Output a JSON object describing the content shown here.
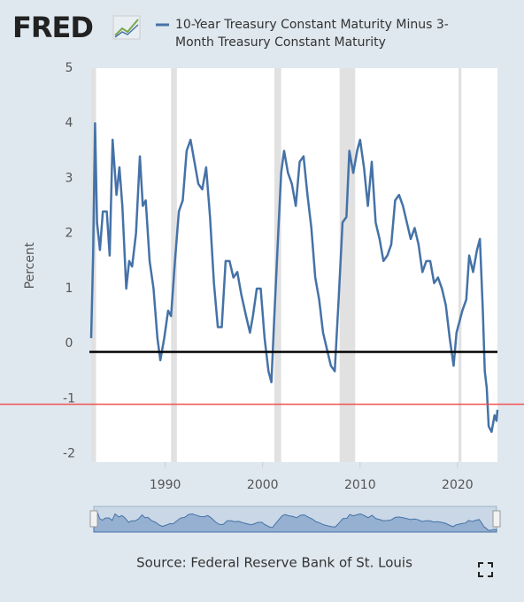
{
  "logo": "FRED",
  "source": "Source: Federal Reserve Bank of St. Louis",
  "chart_data": {
    "type": "line",
    "ylabel": "Percent",
    "xlim": [
      1982.4,
      2024.1
    ],
    "xticks": [
      1990,
      2000,
      2010,
      2020
    ],
    "ylim": [
      -2.15,
      5
    ],
    "yticks": [
      -2,
      -1,
      0,
      1,
      2,
      3,
      4,
      5
    ],
    "recessions": [
      [
        1981.5,
        1982.9
      ],
      [
        1990.6,
        1991.2
      ],
      [
        2001.2,
        2001.9
      ],
      [
        2007.9,
        2009.5
      ],
      [
        2020.1,
        2020.4
      ]
    ],
    "reference_lines": [
      {
        "value": -0.15,
        "color": "#000000"
      },
      {
        "value": -1.1,
        "color": "#f05050"
      }
    ],
    "series": [
      {
        "name": "10-Year Treasury Constant Maturity Minus 3-Month Treasury Constant Maturity",
        "color": "#4572a7",
        "x": [
          1982.4,
          1982.6,
          1982.8,
          1983.0,
          1983.3,
          1983.6,
          1984.0,
          1984.3,
          1984.6,
          1985.0,
          1985.3,
          1985.6,
          1986.0,
          1986.3,
          1986.6,
          1987.0,
          1987.4,
          1987.7,
          1988.0,
          1988.4,
          1988.8,
          1989.2,
          1989.5,
          1989.9,
          1990.3,
          1990.6,
          1991.0,
          1991.4,
          1991.8,
          1992.2,
          1992.6,
          1993.0,
          1993.4,
          1993.8,
          1994.2,
          1994.6,
          1995.0,
          1995.4,
          1995.8,
          1996.2,
          1996.6,
          1997.0,
          1997.4,
          1997.8,
          1998.3,
          1998.7,
          1999.0,
          1999.4,
          1999.8,
          2000.2,
          2000.6,
          2000.9,
          2001.2,
          2001.6,
          2001.9,
          2002.2,
          2002.6,
          2003.0,
          2003.4,
          2003.8,
          2004.2,
          2004.6,
          2005.0,
          2005.4,
          2005.8,
          2006.2,
          2006.6,
          2007.0,
          2007.4,
          2007.8,
          2008.2,
          2008.6,
          2008.9,
          2009.3,
          2009.7,
          2010.0,
          2010.4,
          2010.8,
          2011.2,
          2011.6,
          2012.0,
          2012.4,
          2012.8,
          2013.2,
          2013.6,
          2014.0,
          2014.4,
          2014.8,
          2015.2,
          2015.6,
          2016.0,
          2016.4,
          2016.8,
          2017.2,
          2017.6,
          2018.0,
          2018.4,
          2018.8,
          2019.2,
          2019.6,
          2019.9,
          2020.2,
          2020.5,
          2020.9,
          2021.2,
          2021.6,
          2022.0,
          2022.3,
          2022.6,
          2022.8,
          2023.0,
          2023.2,
          2023.5,
          2023.8,
          2024.0,
          2024.1
        ],
        "values": [
          0.1,
          1.6,
          4.0,
          2.2,
          1.7,
          2.4,
          2.4,
          1.6,
          3.7,
          2.7,
          3.2,
          2.5,
          1.0,
          1.5,
          1.4,
          2.0,
          3.4,
          2.5,
          2.6,
          1.5,
          1.0,
          0.1,
          -0.3,
          0.1,
          0.6,
          0.5,
          1.5,
          2.4,
          2.6,
          3.5,
          3.7,
          3.3,
          2.9,
          2.8,
          3.2,
          2.3,
          1.1,
          0.3,
          0.3,
          1.5,
          1.5,
          1.2,
          1.3,
          0.9,
          0.5,
          0.2,
          0.5,
          1.0,
          1.0,
          0.1,
          -0.5,
          -0.7,
          0.5,
          2.0,
          3.1,
          3.5,
          3.1,
          2.9,
          2.5,
          3.3,
          3.4,
          2.7,
          2.1,
          1.2,
          0.8,
          0.2,
          -0.1,
          -0.4,
          -0.5,
          0.8,
          2.2,
          2.3,
          3.5,
          3.1,
          3.5,
          3.7,
          3.2,
          2.5,
          3.3,
          2.2,
          1.9,
          1.5,
          1.6,
          1.8,
          2.6,
          2.7,
          2.5,
          2.2,
          1.9,
          2.1,
          1.8,
          1.3,
          1.5,
          1.5,
          1.1,
          1.2,
          1.0,
          0.7,
          0.1,
          -0.4,
          0.2,
          0.4,
          0.6,
          0.8,
          1.6,
          1.3,
          1.7,
          1.9,
          0.6,
          -0.5,
          -0.8,
          -1.5,
          -1.6,
          -1.3,
          -1.4,
          -1.2
        ]
      }
    ]
  }
}
